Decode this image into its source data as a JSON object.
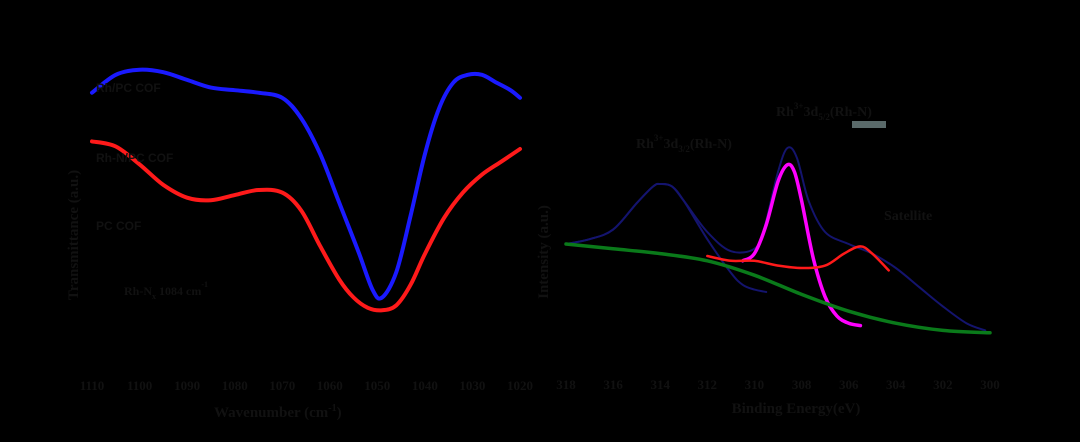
{
  "colors": {
    "background": "#000000",
    "text": "#111111",
    "blue": "#1a1aff",
    "red": "#ff1a1a",
    "navy": "#14146e",
    "magenta": "#ff00ff",
    "green": "#0a7a1a",
    "highlight": "#5a6a6a"
  },
  "chart_data": [
    {
      "type": "line",
      "title": "",
      "xlabel": "Wavenumber (cm",
      "xlabel_sup": "-1",
      "xlabel_suffix": ")",
      "ylabel": "Transmittance (a.u.)",
      "xlim": [
        1110,
        1020
      ],
      "x_reversed": true,
      "ylim": [
        0,
        100
      ],
      "x_ticks": [
        1110,
        1100,
        1090,
        1080,
        1070,
        1060,
        1050,
        1040,
        1030,
        1020
      ],
      "annotation": {
        "text": "Rh-N",
        "sub": "x",
        "rest": " 1084 cm",
        "sup": "-1"
      },
      "series": [
        {
          "name": "Rh/PC COF",
          "color": "#1a1aff",
          "x": [
            1110,
            1105,
            1100,
            1095,
            1090,
            1085,
            1080,
            1075,
            1070,
            1066,
            1062,
            1058,
            1054,
            1051,
            1049,
            1046,
            1043,
            1040,
            1037,
            1034,
            1031,
            1028,
            1025,
            1022,
            1020
          ],
          "y": [
            88,
            95,
            97,
            96,
            93,
            90,
            89,
            88,
            86,
            78,
            64,
            45,
            26,
            11,
            8,
            18,
            40,
            64,
            82,
            92,
            95,
            95,
            92,
            89,
            86
          ]
        },
        {
          "name": "Rh-N/PC COF",
          "color": "#ff1a1a",
          "x": [
            1110,
            1105,
            1100,
            1095,
            1090,
            1085,
            1080,
            1075,
            1070,
            1066,
            1062,
            1058,
            1055,
            1052,
            1049,
            1046,
            1043,
            1040,
            1036,
            1032,
            1028,
            1024,
            1020
          ],
          "y": [
            69,
            67,
            60,
            52,
            47,
            46,
            48,
            50,
            49,
            42,
            28,
            15,
            8,
            4,
            3,
            5,
            13,
            25,
            39,
            49,
            56,
            61,
            66
          ]
        }
      ],
      "extra_labels": [
        "PC COF"
      ]
    },
    {
      "type": "line",
      "title": "",
      "xlabel": "Binding Energy(eV)",
      "ylabel": "Intensity (a.u.)",
      "xlim": [
        318,
        300
      ],
      "x_reversed": true,
      "ylim": [
        0,
        100
      ],
      "x_ticks": [
        318,
        316,
        314,
        312,
        310,
        308,
        306,
        304,
        302,
        300
      ],
      "peak_labels": [
        {
          "base": "Rh",
          "sup": "3+",
          "mid": "3d",
          "sub": "5/2",
          "tail": "(Rh-N)"
        },
        {
          "base": "Rh",
          "sup": "3+",
          "mid": "3d",
          "sub": "3/2",
          "tail": "(Rh-N)"
        }
      ],
      "satellite_label": "Satellite",
      "series": [
        {
          "name": "",
          "role": "envelope",
          "color": "#14146e",
          "x": [
            318,
            317,
            316,
            315,
            314.3,
            314,
            313.5,
            313,
            312,
            311,
            310,
            309.6,
            309,
            308.6,
            308.2,
            307.7,
            307,
            306,
            305,
            304,
            303,
            302,
            301,
            300.2
          ],
          "y": [
            40,
            42,
            46,
            57,
            64,
            65,
            64,
            58,
            45,
            37,
            38,
            46,
            70,
            80,
            76,
            58,
            45,
            40,
            36,
            30,
            22,
            14,
            7,
            4
          ]
        },
        {
          "name": "",
          "role": "component-3d3/2",
          "color": "#14146e",
          "x": [
            318,
            317,
            316,
            315,
            314.3,
            314,
            313.5,
            313,
            312,
            311,
            310.5,
            310,
            309.5
          ],
          "y": [
            40,
            42,
            46,
            57,
            64,
            65,
            64,
            58,
            42,
            28,
            23,
            21,
            20
          ]
        },
        {
          "name": "",
          "role": "component-3d5/2",
          "color": "#ff00ff",
          "x": [
            310.5,
            310,
            309.5,
            309,
            308.6,
            308.3,
            308,
            307.5,
            307,
            306.5,
            306,
            305.5
          ],
          "y": [
            33,
            36,
            48,
            66,
            73,
            70,
            58,
            34,
            18,
            10,
            7,
            6
          ]
        },
        {
          "name": "",
          "role": "satellite-component",
          "color": "#ff1a1a",
          "x": [
            312,
            311,
            310,
            309,
            308,
            307,
            306.2,
            305.5,
            305,
            304.3
          ],
          "y": [
            35,
            33,
            33,
            31,
            30,
            31,
            36,
            39,
            36,
            29
          ]
        },
        {
          "name": "",
          "role": "background",
          "color": "#0a7a1a",
          "x": [
            318,
            316,
            314,
            312,
            310,
            308,
            306,
            304,
            302,
            300
          ],
          "y": [
            40,
            38,
            36,
            33,
            27,
            19,
            12,
            7,
            4,
            3
          ]
        }
      ]
    }
  ]
}
